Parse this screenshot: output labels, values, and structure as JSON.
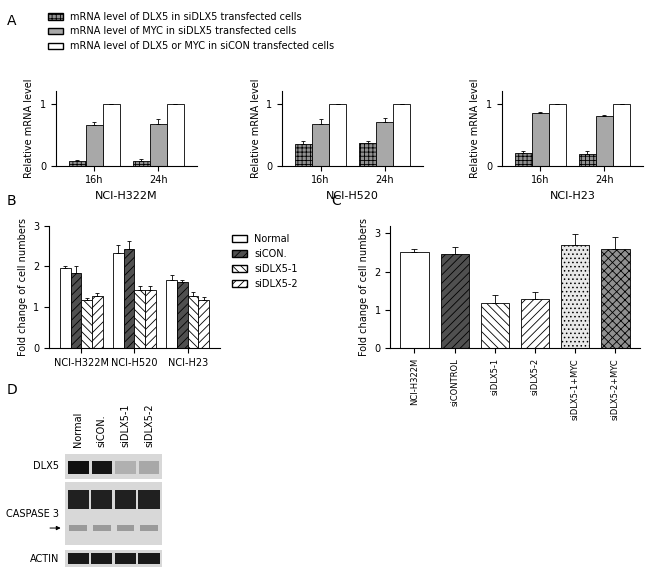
{
  "panel_labels": [
    "A",
    "B",
    "C",
    "D"
  ],
  "chart_data": [
    {
      "type": "bar",
      "x_label": "NCI-H322M",
      "y_label": "Relative mRNA level",
      "categories": [
        "16h",
        "24h"
      ],
      "ylim": [
        0,
        1.2
      ],
      "yticks": [
        0,
        1
      ],
      "legend": "upper left",
      "series": [
        {
          "name": "mRNA level of DLX5 in siDLX5 transfected cells",
          "color": "#909090",
          "values": [
            0.07,
            0.07
          ],
          "errors": [
            0.02,
            0.03
          ]
        },
        {
          "name": "mRNA level of MYC in siDLX5 transfected cells",
          "color": "#a8a8a8",
          "values": [
            0.65,
            0.67
          ],
          "errors": [
            0.05,
            0.08
          ]
        },
        {
          "name": "mRNA level of DLX5 or MYC in siCON transfected cells",
          "color": "#ffffff",
          "values": [
            1,
            1
          ],
          "errors": [
            0,
            0
          ]
        }
      ]
    },
    {
      "type": "bar",
      "x_label": "NCI-H520",
      "y_label": "Relative mRNA level",
      "categories": [
        "16h",
        "24h"
      ],
      "ylim": [
        0,
        1.2
      ],
      "yticks": [
        0,
        1
      ],
      "series": [
        {
          "name": "mRNA level of DLX5 in siDLX5 transfected cells",
          "color": "#909090",
          "values": [
            0.35,
            0.36
          ],
          "errors": [
            0.05,
            0.03
          ]
        },
        {
          "name": "mRNA level of MYC in siDLX5 transfected cells",
          "color": "#a8a8a8",
          "values": [
            0.67,
            0.7
          ],
          "errors": [
            0.08,
            0.07
          ]
        },
        {
          "name": "mRNA level of DLX5 or MYC in siCON transfected cells",
          "color": "#ffffff",
          "values": [
            1,
            1
          ],
          "errors": [
            0,
            0
          ]
        }
      ]
    },
    {
      "type": "bar",
      "x_label": "NCI-H23",
      "y_label": "Relative mRNA level",
      "categories": [
        "16h",
        "24h"
      ],
      "ylim": [
        0,
        1.2
      ],
      "yticks": [
        0,
        1
      ],
      "series": [
        {
          "name": "mRNA level of DLX5 in siDLX5 transfected cells",
          "color": "#909090",
          "values": [
            0.2,
            0.18
          ],
          "errors": [
            0.04,
            0.06
          ]
        },
        {
          "name": "mRNA level of MYC in siDLX5 transfected cells",
          "color": "#a8a8a8",
          "values": [
            0.85,
            0.8
          ],
          "errors": [
            0.02,
            0.02
          ]
        },
        {
          "name": "mRNA level of DLX5 or MYC in siCON transfected cells",
          "color": "#ffffff",
          "values": [
            1,
            1
          ],
          "errors": [
            0,
            0
          ]
        }
      ]
    },
    {
      "type": "bar",
      "y_label": "Fold change of cell numbers",
      "categories": [
        "NCI-H322M",
        "NCI-H520",
        "NCI-H23"
      ],
      "ylim": [
        0,
        3
      ],
      "yticks": [
        0,
        1,
        2,
        3
      ],
      "legend": "upper left",
      "series": [
        {
          "name": "Normal",
          "color": "#ffffff",
          "values": [
            1.97,
            2.33,
            1.68
          ],
          "errors": [
            0.05,
            0.2,
            0.1
          ]
        },
        {
          "name": "siCON.",
          "color": "#505050",
          "values": [
            1.85,
            2.42,
            1.62
          ],
          "errors": [
            0.15,
            0.2,
            0.05
          ]
        },
        {
          "name": "siDLX5-1",
          "color": "#ffffff",
          "values": [
            1.18,
            1.42,
            1.27
          ],
          "errors": [
            0.06,
            0.1,
            0.1
          ]
        },
        {
          "name": "siDLX5-2",
          "color": "#ffffff",
          "values": [
            1.28,
            1.42,
            1.18
          ],
          "errors": [
            0.07,
            0.1,
            0.08
          ]
        }
      ]
    },
    {
      "type": "bar",
      "y_label": "Fold change of cell numbers",
      "categories": [
        "NCI-H322M",
        "siCONTROL",
        "siDLX5-1",
        "siDLX5-2",
        "siDLX5-1+MYC",
        "siDLX5-2+MYC"
      ],
      "ylim": [
        0,
        3.2
      ],
      "yticks": [
        0,
        1,
        2,
        3
      ],
      "values": [
        2.52,
        2.45,
        1.18,
        1.28,
        2.7,
        2.6
      ],
      "errors": [
        0.08,
        0.18,
        0.22,
        0.18,
        0.28,
        0.3
      ],
      "colors": [
        "#ffffff",
        "#505050",
        "#ffffff",
        "#ffffff",
        "#e8e8e8",
        "#909090"
      ]
    }
  ],
  "blot": {
    "lanes": [
      "Normal",
      "siCON.",
      "siDLX5-1",
      "siDLX5-2"
    ],
    "rows": [
      "DLX5",
      "CASPASE 3",
      "ACTIN"
    ]
  }
}
